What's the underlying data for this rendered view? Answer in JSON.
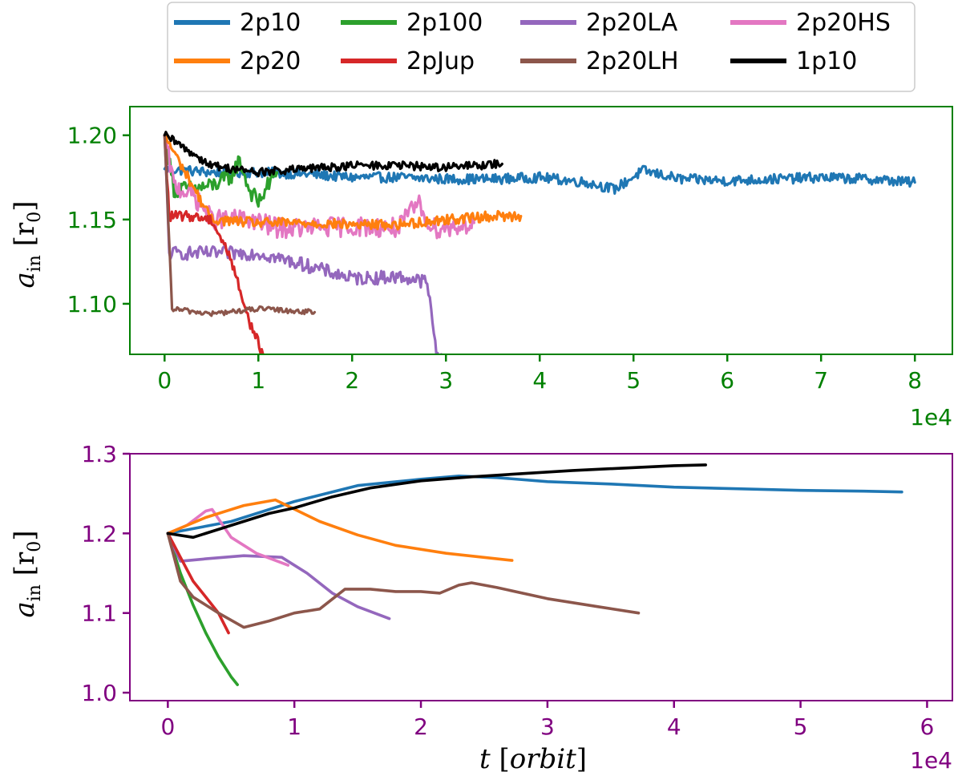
{
  "legend": {
    "entries": [
      {
        "label": "2p10",
        "color": "#1f77b4"
      },
      {
        "label": "2p100",
        "color": "#2ca02c"
      },
      {
        "label": "2p20LA",
        "color": "#9467bd"
      },
      {
        "label": "2p20HS",
        "color": "#e377c2"
      },
      {
        "label": "2p20",
        "color": "#ff7f0e"
      },
      {
        "label": "2pJup",
        "color": "#d62728"
      },
      {
        "label": "2p20LH",
        "color": "#8c564b"
      },
      {
        "label": "1p10",
        "color": "#000000"
      }
    ]
  },
  "chart_data": [
    {
      "type": "line",
      "axis_color": "#008000",
      "ylabel": "a_in [r_0]",
      "xlabel": "",
      "x_multiplier": "1e4",
      "xlim": [
        -0.37,
        8.4
      ],
      "ylim": [
        1.07,
        1.217
      ],
      "xticks": [
        0,
        1,
        2,
        3,
        4,
        5,
        6,
        7,
        8
      ],
      "yticks": [
        1.1,
        1.15,
        1.2
      ],
      "ytick_labels": [
        "1.10",
        "1.15",
        "1.20"
      ],
      "noisy": true,
      "series": [
        {
          "name": "2p10",
          "color": "#1f77b4",
          "x": [
            0,
            0.5,
            1,
            1.5,
            2,
            2.5,
            3,
            3.5,
            4,
            4.5,
            4.8,
            5.1,
            5.5,
            6,
            6.5,
            7,
            7.5,
            8
          ],
          "y": [
            1.18,
            1.178,
            1.178,
            1.177,
            1.175,
            1.175,
            1.174,
            1.174,
            1.175,
            1.172,
            1.168,
            1.179,
            1.174,
            1.173,
            1.174,
            1.175,
            1.174,
            1.172
          ],
          "noise": 0.003
        },
        {
          "name": "2p100",
          "color": "#2ca02c",
          "x": [
            0,
            0.1,
            0.3,
            0.5,
            0.7,
            0.8,
            0.9,
            1.0,
            1.1,
            1.2
          ],
          "y": [
            1.2,
            1.168,
            1.168,
            1.17,
            1.175,
            1.185,
            1.168,
            1.16,
            1.17,
            1.178
          ],
          "noise": 0.005
        },
        {
          "name": "2p20LA",
          "color": "#9467bd",
          "x": [
            0,
            0.05,
            0.2,
            0.5,
            1,
            1.5,
            2,
            2.5,
            2.8,
            2.9,
            2.95
          ],
          "y": [
            1.2,
            1.13,
            1.13,
            1.13,
            1.13,
            1.123,
            1.115,
            1.116,
            1.113,
            1.07,
            1.07
          ],
          "noise": 0.004
        },
        {
          "name": "2p20HS",
          "color": "#e377c2",
          "x": [
            0,
            0.1,
            0.3,
            0.5,
            0.9,
            1.2,
            1.5,
            2,
            2.5,
            2.7,
            2.85,
            3.0,
            3.3
          ],
          "y": [
            1.2,
            1.17,
            1.165,
            1.15,
            1.15,
            1.145,
            1.145,
            1.146,
            1.145,
            1.16,
            1.145,
            1.145,
            1.148
          ],
          "noise": 0.006
        },
        {
          "name": "2p20",
          "color": "#ff7f0e",
          "x": [
            0,
            0.5,
            1,
            1.5,
            2,
            2.5,
            3,
            3.5,
            3.8
          ],
          "y": [
            1.2,
            1.15,
            1.148,
            1.148,
            1.147,
            1.147,
            1.15,
            1.152,
            1.152
          ],
          "noise": 0.003
        },
        {
          "name": "2pJup",
          "color": "#d62728",
          "x": [
            0,
            0.05,
            0.3,
            0.5,
            0.7,
            0.9,
            1.05
          ],
          "y": [
            1.2,
            1.152,
            1.152,
            1.15,
            1.128,
            1.09,
            1.07
          ],
          "noise": 0.003
        },
        {
          "name": "2p20LH",
          "color": "#8c564b",
          "x": [
            0,
            0.08,
            0.5,
            1.0,
            1.6
          ],
          "y": [
            1.2,
            1.097,
            1.094,
            1.097,
            1.095
          ],
          "noise": 0.0015
        },
        {
          "name": "1p10",
          "color": "#000000",
          "x": [
            0,
            0.5,
            1,
            1.5,
            2,
            2.5,
            3,
            3.6
          ],
          "y": [
            1.2,
            1.182,
            1.178,
            1.18,
            1.182,
            1.182,
            1.181,
            1.183
          ],
          "noise": 0.0025
        }
      ]
    },
    {
      "type": "line",
      "axis_color": "#800080",
      "ylabel": "a_in [r_0]",
      "xlabel": "t [orbit]",
      "x_multiplier": "1e4",
      "xlim": [
        -0.3,
        6.2
      ],
      "ylim": [
        0.99,
        1.3
      ],
      "xticks": [
        0,
        1,
        2,
        3,
        4,
        5,
        6
      ],
      "yticks": [
        1.0,
        1.1,
        1.2,
        1.3
      ],
      "ytick_labels": [
        "1.0",
        "1.1",
        "1.2",
        "1.3"
      ],
      "noisy": false,
      "series": [
        {
          "name": "2p10",
          "color": "#1f77b4",
          "x": [
            0,
            0.5,
            1,
            1.5,
            2,
            2.3,
            2.6,
            3,
            3.5,
            4,
            4.5,
            5,
            5.5,
            5.8
          ],
          "y": [
            1.2,
            1.215,
            1.24,
            1.26,
            1.268,
            1.272,
            1.27,
            1.265,
            1.262,
            1.258,
            1.256,
            1.254,
            1.253,
            1.252
          ]
        },
        {
          "name": "2p100",
          "color": "#2ca02c",
          "x": [
            0,
            0.1,
            0.2,
            0.3,
            0.4,
            0.5,
            0.55
          ],
          "y": [
            1.2,
            1.15,
            1.11,
            1.075,
            1.045,
            1.02,
            1.01
          ]
        },
        {
          "name": "2p20LA",
          "color": "#9467bd",
          "x": [
            0,
            0.1,
            0.3,
            0.6,
            0.9,
            1.1,
            1.3,
            1.5,
            1.75
          ],
          "y": [
            1.2,
            1.165,
            1.168,
            1.172,
            1.17,
            1.15,
            1.125,
            1.108,
            1.093
          ]
        },
        {
          "name": "2p20HS",
          "color": "#e377c2",
          "x": [
            0,
            0.15,
            0.3,
            0.35,
            0.5,
            0.7,
            0.95
          ],
          "y": [
            1.2,
            1.21,
            1.228,
            1.23,
            1.195,
            1.175,
            1.16
          ]
        },
        {
          "name": "2p20",
          "color": "#ff7f0e",
          "x": [
            0,
            0.3,
            0.6,
            0.85,
            1.2,
            1.5,
            1.8,
            2.2,
            2.72
          ],
          "y": [
            1.2,
            1.22,
            1.235,
            1.242,
            1.215,
            1.198,
            1.185,
            1.175,
            1.166
          ]
        },
        {
          "name": "2pJup",
          "color": "#d62728",
          "x": [
            0,
            0.1,
            0.2,
            0.3,
            0.4,
            0.48
          ],
          "y": [
            1.2,
            1.17,
            1.14,
            1.12,
            1.1,
            1.075
          ]
        },
        {
          "name": "2p20LH",
          "color": "#8c564b",
          "x": [
            0,
            0.1,
            0.2,
            0.4,
            0.6,
            0.8,
            1.0,
            1.2,
            1.4,
            1.6,
            1.8,
            2.0,
            2.15,
            2.3,
            2.4,
            2.6,
            3,
            3.4,
            3.72
          ],
          "y": [
            1.2,
            1.14,
            1.12,
            1.1,
            1.082,
            1.09,
            1.1,
            1.105,
            1.13,
            1.13,
            1.127,
            1.127,
            1.125,
            1.135,
            1.138,
            1.132,
            1.118,
            1.108,
            1.1
          ]
        },
        {
          "name": "1p10",
          "color": "#000000",
          "x": [
            0,
            0.2,
            0.5,
            0.8,
            1.0,
            1.3,
            1.6,
            2.0,
            2.4,
            2.8,
            3.2,
            3.6,
            4.0,
            4.25
          ],
          "y": [
            1.2,
            1.195,
            1.21,
            1.225,
            1.232,
            1.246,
            1.257,
            1.266,
            1.271,
            1.275,
            1.279,
            1.282,
            1.285,
            1.286
          ]
        }
      ]
    }
  ]
}
